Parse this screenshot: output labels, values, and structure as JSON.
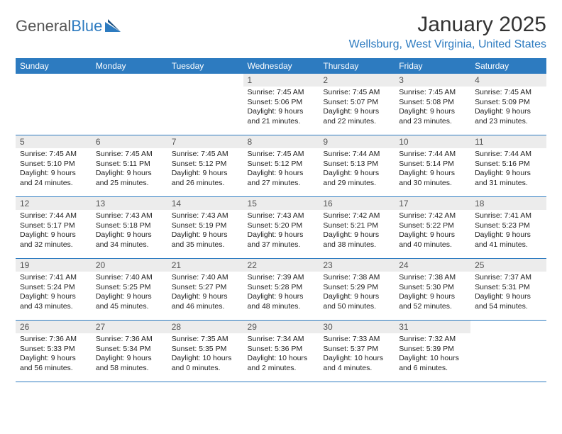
{
  "logo": {
    "text1": "General",
    "text2": "Blue"
  },
  "title": "January 2025",
  "location": "Wellsburg, West Virginia, United States",
  "colors": {
    "header_bg": "#2d7bc0",
    "header_text": "#ffffff",
    "daynum_bg": "#ececec",
    "row_border": "#2d7bc0",
    "logo_gray": "#555555",
    "logo_blue": "#2d7bc0"
  },
  "weekdays": [
    "Sunday",
    "Monday",
    "Tuesday",
    "Wednesday",
    "Thursday",
    "Friday",
    "Saturday"
  ],
  "cells": [
    {
      "n": "",
      "e": true
    },
    {
      "n": "",
      "e": true
    },
    {
      "n": "",
      "e": true
    },
    {
      "n": "1",
      "sr": "Sunrise: 7:45 AM",
      "ss": "Sunset: 5:06 PM",
      "d1": "Daylight: 9 hours",
      "d2": "and 21 minutes."
    },
    {
      "n": "2",
      "sr": "Sunrise: 7:45 AM",
      "ss": "Sunset: 5:07 PM",
      "d1": "Daylight: 9 hours",
      "d2": "and 22 minutes."
    },
    {
      "n": "3",
      "sr": "Sunrise: 7:45 AM",
      "ss": "Sunset: 5:08 PM",
      "d1": "Daylight: 9 hours",
      "d2": "and 23 minutes."
    },
    {
      "n": "4",
      "sr": "Sunrise: 7:45 AM",
      "ss": "Sunset: 5:09 PM",
      "d1": "Daylight: 9 hours",
      "d2": "and 23 minutes."
    },
    {
      "n": "5",
      "sr": "Sunrise: 7:45 AM",
      "ss": "Sunset: 5:10 PM",
      "d1": "Daylight: 9 hours",
      "d2": "and 24 minutes."
    },
    {
      "n": "6",
      "sr": "Sunrise: 7:45 AM",
      "ss": "Sunset: 5:11 PM",
      "d1": "Daylight: 9 hours",
      "d2": "and 25 minutes."
    },
    {
      "n": "7",
      "sr": "Sunrise: 7:45 AM",
      "ss": "Sunset: 5:12 PM",
      "d1": "Daylight: 9 hours",
      "d2": "and 26 minutes."
    },
    {
      "n": "8",
      "sr": "Sunrise: 7:45 AM",
      "ss": "Sunset: 5:12 PM",
      "d1": "Daylight: 9 hours",
      "d2": "and 27 minutes."
    },
    {
      "n": "9",
      "sr": "Sunrise: 7:44 AM",
      "ss": "Sunset: 5:13 PM",
      "d1": "Daylight: 9 hours",
      "d2": "and 29 minutes."
    },
    {
      "n": "10",
      "sr": "Sunrise: 7:44 AM",
      "ss": "Sunset: 5:14 PM",
      "d1": "Daylight: 9 hours",
      "d2": "and 30 minutes."
    },
    {
      "n": "11",
      "sr": "Sunrise: 7:44 AM",
      "ss": "Sunset: 5:16 PM",
      "d1": "Daylight: 9 hours",
      "d2": "and 31 minutes."
    },
    {
      "n": "12",
      "sr": "Sunrise: 7:44 AM",
      "ss": "Sunset: 5:17 PM",
      "d1": "Daylight: 9 hours",
      "d2": "and 32 minutes."
    },
    {
      "n": "13",
      "sr": "Sunrise: 7:43 AM",
      "ss": "Sunset: 5:18 PM",
      "d1": "Daylight: 9 hours",
      "d2": "and 34 minutes."
    },
    {
      "n": "14",
      "sr": "Sunrise: 7:43 AM",
      "ss": "Sunset: 5:19 PM",
      "d1": "Daylight: 9 hours",
      "d2": "and 35 minutes."
    },
    {
      "n": "15",
      "sr": "Sunrise: 7:43 AM",
      "ss": "Sunset: 5:20 PM",
      "d1": "Daylight: 9 hours",
      "d2": "and 37 minutes."
    },
    {
      "n": "16",
      "sr": "Sunrise: 7:42 AM",
      "ss": "Sunset: 5:21 PM",
      "d1": "Daylight: 9 hours",
      "d2": "and 38 minutes."
    },
    {
      "n": "17",
      "sr": "Sunrise: 7:42 AM",
      "ss": "Sunset: 5:22 PM",
      "d1": "Daylight: 9 hours",
      "d2": "and 40 minutes."
    },
    {
      "n": "18",
      "sr": "Sunrise: 7:41 AM",
      "ss": "Sunset: 5:23 PM",
      "d1": "Daylight: 9 hours",
      "d2": "and 41 minutes."
    },
    {
      "n": "19",
      "sr": "Sunrise: 7:41 AM",
      "ss": "Sunset: 5:24 PM",
      "d1": "Daylight: 9 hours",
      "d2": "and 43 minutes."
    },
    {
      "n": "20",
      "sr": "Sunrise: 7:40 AM",
      "ss": "Sunset: 5:25 PM",
      "d1": "Daylight: 9 hours",
      "d2": "and 45 minutes."
    },
    {
      "n": "21",
      "sr": "Sunrise: 7:40 AM",
      "ss": "Sunset: 5:27 PM",
      "d1": "Daylight: 9 hours",
      "d2": "and 46 minutes."
    },
    {
      "n": "22",
      "sr": "Sunrise: 7:39 AM",
      "ss": "Sunset: 5:28 PM",
      "d1": "Daylight: 9 hours",
      "d2": "and 48 minutes."
    },
    {
      "n": "23",
      "sr": "Sunrise: 7:38 AM",
      "ss": "Sunset: 5:29 PM",
      "d1": "Daylight: 9 hours",
      "d2": "and 50 minutes."
    },
    {
      "n": "24",
      "sr": "Sunrise: 7:38 AM",
      "ss": "Sunset: 5:30 PM",
      "d1": "Daylight: 9 hours",
      "d2": "and 52 minutes."
    },
    {
      "n": "25",
      "sr": "Sunrise: 7:37 AM",
      "ss": "Sunset: 5:31 PM",
      "d1": "Daylight: 9 hours",
      "d2": "and 54 minutes."
    },
    {
      "n": "26",
      "sr": "Sunrise: 7:36 AM",
      "ss": "Sunset: 5:33 PM",
      "d1": "Daylight: 9 hours",
      "d2": "and 56 minutes."
    },
    {
      "n": "27",
      "sr": "Sunrise: 7:36 AM",
      "ss": "Sunset: 5:34 PM",
      "d1": "Daylight: 9 hours",
      "d2": "and 58 minutes."
    },
    {
      "n": "28",
      "sr": "Sunrise: 7:35 AM",
      "ss": "Sunset: 5:35 PM",
      "d1": "Daylight: 10 hours",
      "d2": "and 0 minutes."
    },
    {
      "n": "29",
      "sr": "Sunrise: 7:34 AM",
      "ss": "Sunset: 5:36 PM",
      "d1": "Daylight: 10 hours",
      "d2": "and 2 minutes."
    },
    {
      "n": "30",
      "sr": "Sunrise: 7:33 AM",
      "ss": "Sunset: 5:37 PM",
      "d1": "Daylight: 10 hours",
      "d2": "and 4 minutes."
    },
    {
      "n": "31",
      "sr": "Sunrise: 7:32 AM",
      "ss": "Sunset: 5:39 PM",
      "d1": "Daylight: 10 hours",
      "d2": "and 6 minutes."
    },
    {
      "n": "",
      "e": true
    }
  ]
}
